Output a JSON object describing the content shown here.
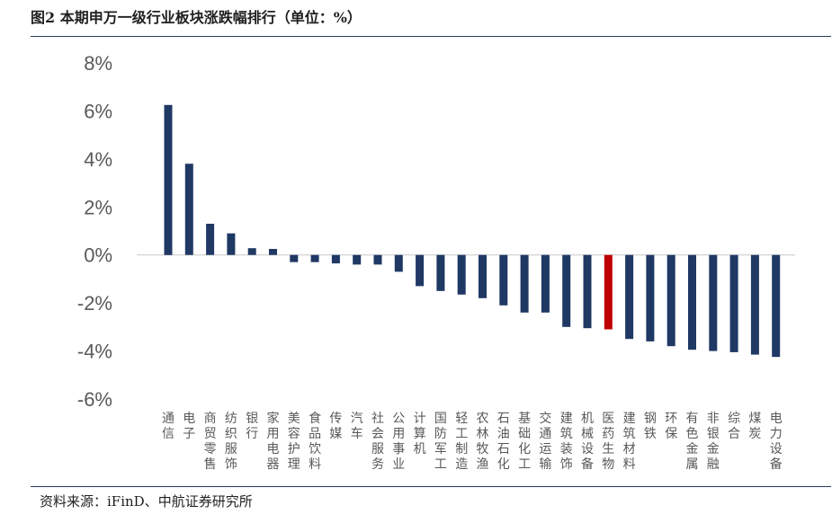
{
  "title": "图2 本期申万一级行业板块涨跌幅排行（单位：%）",
  "source": "资料来源：iFinD、中航证券研究所",
  "chart_data": {
    "type": "bar",
    "title": "图2 本期申万一级行业板块涨跌幅排行（单位：%）",
    "xlabel": "",
    "ylabel": "",
    "ylim": [
      -6,
      8
    ],
    "yticks": [
      8,
      6,
      4,
      2,
      0,
      -2,
      -4,
      -6
    ],
    "ytick_labels": [
      "8%",
      "6%",
      "4%",
      "2%",
      "0%",
      "-2%",
      "-4%",
      "-6%"
    ],
    "grid": false,
    "legend": "none",
    "colors": {
      "default": "#1f3864",
      "highlight": "#c00000"
    },
    "highlight_category": "医药生物",
    "categories": [
      "通信",
      "电子",
      "商贸零售",
      "纺织服饰",
      "银行",
      "家用电器",
      "美容护理",
      "食品饮料",
      "传媒",
      "汽车",
      "社会服务",
      "公用事业",
      "计算机",
      "国防军工",
      "轻工制造",
      "农林牧渔",
      "石油石化",
      "基础化工",
      "交通运输",
      "建筑装饰",
      "机械设备",
      "医药生物",
      "建筑材料",
      "钢铁",
      "环保",
      "有色金属",
      "非银金融",
      "综合",
      "煤炭",
      "电力设备"
    ],
    "values": [
      6.25,
      3.8,
      1.3,
      0.9,
      0.28,
      0.25,
      -0.3,
      -0.3,
      -0.35,
      -0.4,
      -0.4,
      -0.7,
      -1.3,
      -1.5,
      -1.65,
      -1.8,
      -2.1,
      -2.4,
      -2.4,
      -3.0,
      -3.05,
      -3.1,
      -3.5,
      -3.6,
      -3.8,
      -3.95,
      -4.0,
      -4.05,
      -4.15,
      -4.25
    ]
  }
}
